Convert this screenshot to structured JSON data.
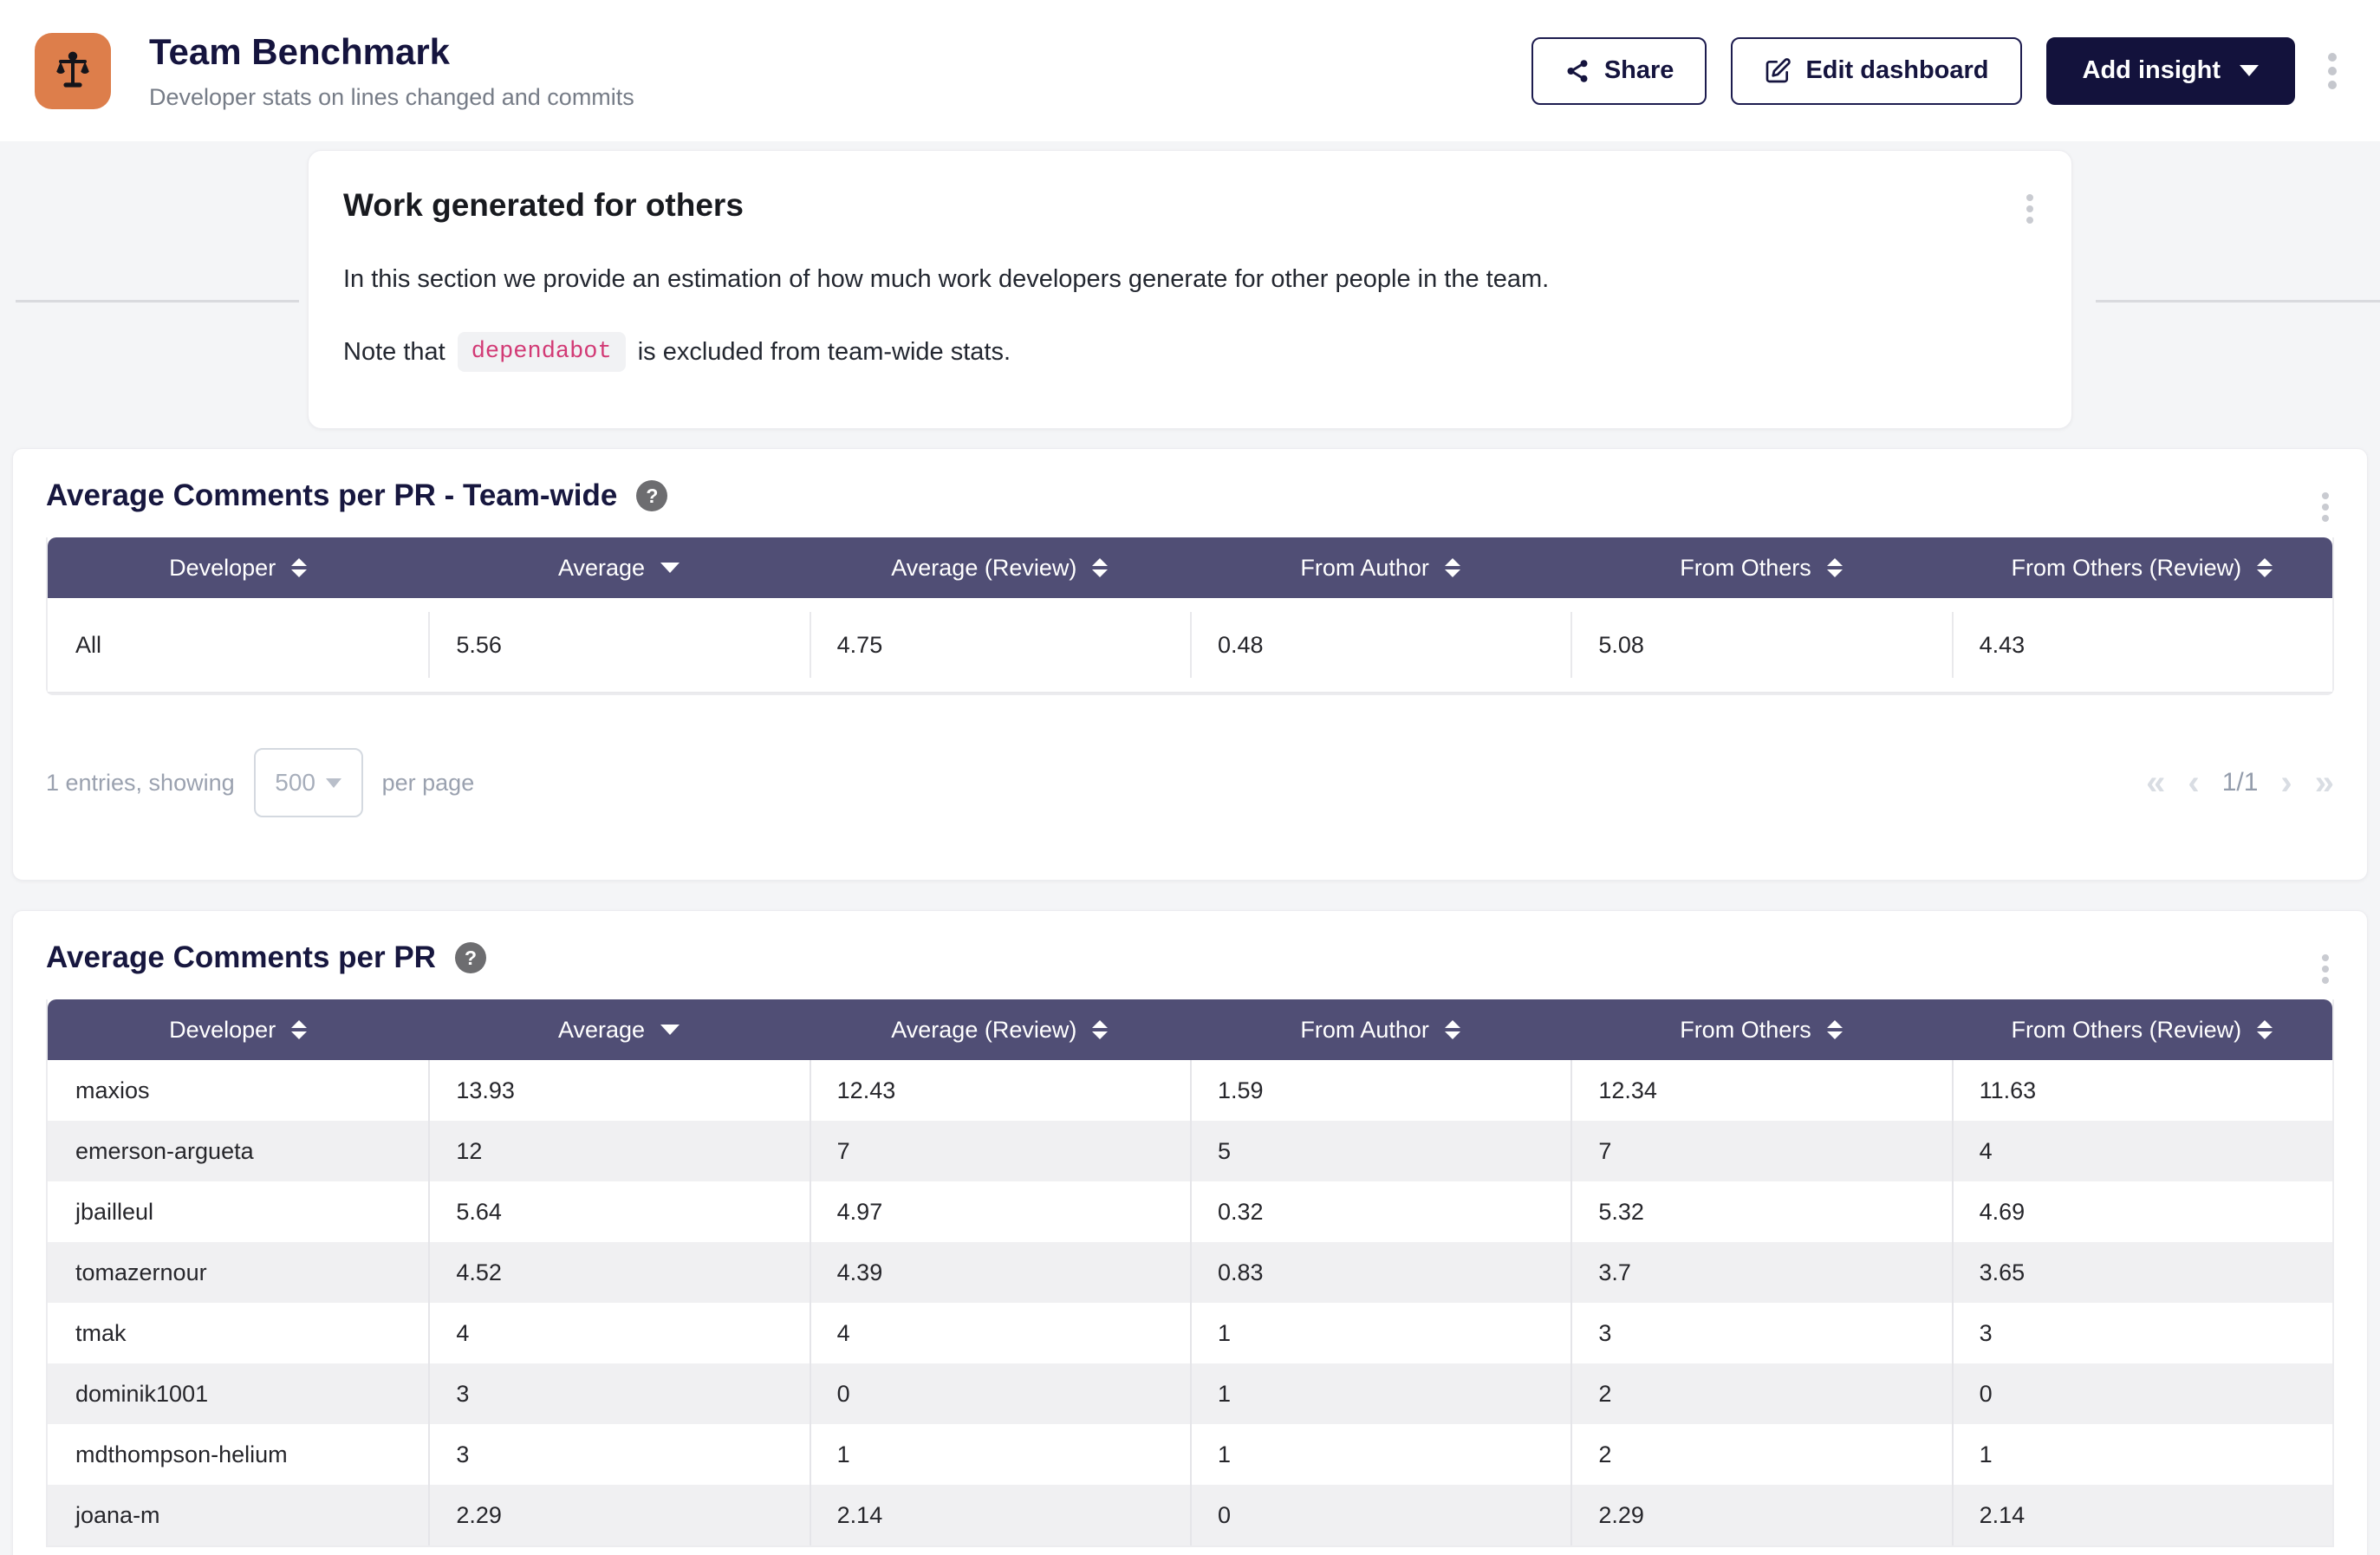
{
  "header": {
    "title": "Team Benchmark",
    "subtitle": "Developer stats on lines changed and commits",
    "share_label": "Share",
    "edit_label": "Edit dashboard",
    "add_insight_label": "Add insight"
  },
  "icons": {
    "help_glyph": "?"
  },
  "colors": {
    "app_icon_orange": "#dd7e4b",
    "table_header_purple": "#504e75",
    "brand_navy": "#13123c",
    "code_pink": "#d23a75",
    "page_background": "#f4f5f7"
  },
  "work_card": {
    "title": "Work generated for others",
    "paragraph": "In this section we provide an estimation of how much work developers generate for other people in the team.",
    "note_prefix": "Note that",
    "note_code": "dependabot",
    "note_suffix": "is excluded from team-wide stats."
  },
  "teamwide_card": {
    "title": "Average Comments per PR - Team-wide",
    "table": {
      "columns": [
        "Developer",
        "Average",
        "Average (Review)",
        "From Author",
        "From Others",
        "From Others (Review)"
      ],
      "sorted_column_index": 1,
      "rows": [
        [
          "All",
          "5.56",
          "4.75",
          "0.48",
          "5.08",
          "4.43"
        ]
      ]
    },
    "pagination": {
      "entries_text": "1 entries, showing",
      "page_size": "500",
      "per_page_text": "per page",
      "first": "«",
      "prev": "‹",
      "page_indicator": "1/1",
      "next": "›",
      "last": "»"
    }
  },
  "perdev_card": {
    "title": "Average Comments per PR",
    "table": {
      "columns": [
        "Developer",
        "Average",
        "Average (Review)",
        "From Author",
        "From Others",
        "From Others (Review)"
      ],
      "sorted_column_index": 1,
      "rows": [
        [
          "maxios",
          "13.93",
          "12.43",
          "1.59",
          "12.34",
          "11.63"
        ],
        [
          "emerson-argueta",
          "12",
          "7",
          "5",
          "7",
          "4"
        ],
        [
          "jbailleul",
          "5.64",
          "4.97",
          "0.32",
          "5.32",
          "4.69"
        ],
        [
          "tomazernour",
          "4.52",
          "4.39",
          "0.83",
          "3.7",
          "3.65"
        ],
        [
          "tmak",
          "4",
          "4",
          "1",
          "3",
          "3"
        ],
        [
          "dominik1001",
          "3",
          "0",
          "1",
          "2",
          "0"
        ],
        [
          "mdthompson-helium",
          "3",
          "1",
          "1",
          "2",
          "1"
        ],
        [
          "joana-m",
          "2.29",
          "2.14",
          "0",
          "2.29",
          "2.14"
        ]
      ]
    }
  }
}
